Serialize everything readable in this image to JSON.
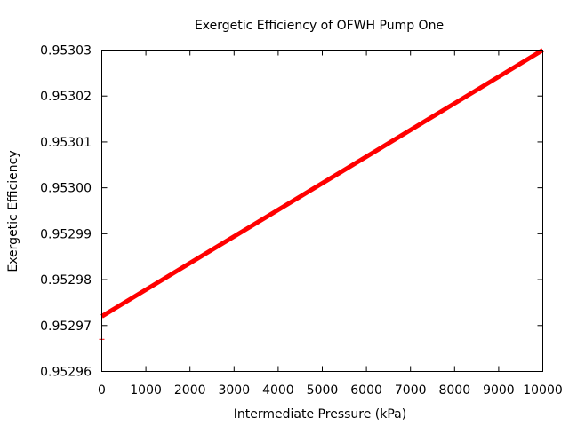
{
  "chart_data": {
    "type": "line",
    "title": "Exergetic Efficiency of OFWH Pump One",
    "xlabel": "Intermediate Pressure (kPa)",
    "ylabel": "Exergetic Efficiency",
    "xlim": [
      0,
      10000
    ],
    "ylim": [
      0.95296,
      0.95303
    ],
    "xticks": [
      0,
      1000,
      2000,
      3000,
      4000,
      5000,
      6000,
      7000,
      8000,
      9000,
      10000
    ],
    "yticks": [
      "0.95296",
      "0.95297",
      "0.95298",
      "0.95299",
      "0.95300",
      "0.95301",
      "0.95302",
      "0.95303"
    ],
    "grid": false,
    "series": [
      {
        "color": "#ff0000",
        "x": [
          0,
          10000
        ],
        "y": [
          0.952972,
          0.95303
        ]
      }
    ],
    "outlier_point": {
      "x": 0,
      "y": 0.952967,
      "color": "#ff0000"
    }
  }
}
